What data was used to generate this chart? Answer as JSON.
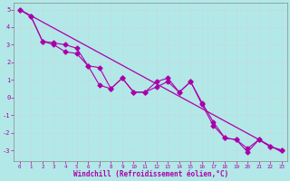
{
  "xlabel": "Windchill (Refroidissement éolien,°C)",
  "background_color": "#b2e8e8",
  "grid_color": "#c0dede",
  "line_color": "#aa00aa",
  "xlim": [
    -0.5,
    23.5
  ],
  "ylim": [
    -3.6,
    5.4
  ],
  "xticks": [
    0,
    1,
    2,
    3,
    4,
    5,
    6,
    7,
    8,
    9,
    10,
    11,
    12,
    13,
    14,
    15,
    16,
    17,
    18,
    19,
    20,
    21,
    22,
    23
  ],
  "yticks": [
    -3,
    -2,
    -1,
    0,
    1,
    2,
    3,
    4,
    5
  ],
  "trend_x": [
    0,
    23
  ],
  "trend_y": [
    5.0,
    -3.1
  ],
  "line1_x": [
    0,
    1,
    2,
    3,
    4,
    5,
    6,
    7,
    8,
    9,
    10,
    11,
    12,
    13,
    14,
    15,
    16,
    17,
    18,
    19,
    20,
    21,
    22,
    23
  ],
  "line1_y": [
    5.0,
    4.6,
    3.2,
    3.1,
    3.0,
    2.8,
    1.8,
    1.7,
    0.5,
    1.1,
    0.3,
    0.3,
    0.9,
    1.1,
    0.3,
    0.9,
    -0.3,
    -1.4,
    -2.3,
    -2.4,
    -2.9,
    -2.4,
    -2.8,
    -3.0
  ],
  "line2_x": [
    0,
    1,
    2,
    3,
    4,
    5,
    6,
    7,
    8,
    9,
    10,
    11,
    12,
    13,
    14,
    15,
    16,
    17,
    18,
    19,
    20,
    21,
    22,
    23
  ],
  "line2_y": [
    5.0,
    4.6,
    3.2,
    3.0,
    2.6,
    2.5,
    1.8,
    0.7,
    0.5,
    1.1,
    0.3,
    0.3,
    0.6,
    0.9,
    0.3,
    0.9,
    -0.4,
    -1.6,
    -2.3,
    -2.4,
    -3.1,
    -2.4,
    -2.8,
    -3.0
  ]
}
